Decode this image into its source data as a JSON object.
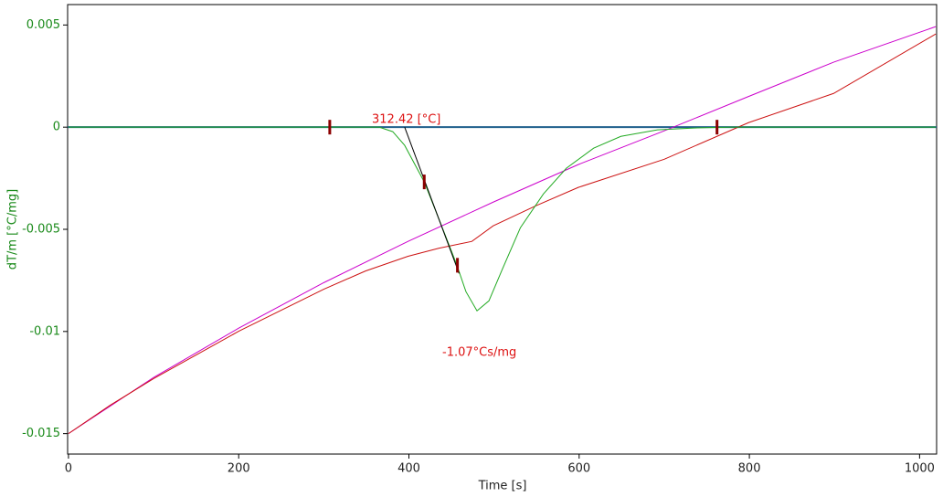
{
  "chart_data": {
    "type": "line",
    "x_label": "Time [s]",
    "y_label": "dT/m  [°C/mg]",
    "xlim": [
      -1,
      1020
    ],
    "ylim": [
      -0.016,
      0.006
    ],
    "xticks": [
      0,
      200,
      400,
      600,
      800,
      1000
    ],
    "yticks": [
      0.005,
      0,
      -0.005,
      -0.01,
      -0.015
    ],
    "reference_line": {
      "y": 0,
      "color": "#1f5f8b"
    },
    "series": [
      {
        "color": "#cc00cc",
        "x": [
          0,
          100,
          200,
          300,
          399,
          499,
          599,
          700,
          799,
          899,
          1019
        ],
        "values": [
          -0.015,
          -0.01225,
          -0.00984,
          -0.00761,
          -0.00559,
          -0.00367,
          -0.00183,
          -0.00018,
          0.0015,
          0.00318,
          0.00492
        ]
      },
      {
        "color": "#cc1111",
        "x": [
          0,
          49,
          100,
          200,
          300,
          349,
          399,
          435,
          474,
          499,
          549,
          599,
          700,
          799,
          899,
          1019
        ],
        "values": [
          -0.015,
          -0.01361,
          -0.01231,
          -0.00999,
          -0.00793,
          -0.00704,
          -0.00632,
          -0.00593,
          -0.00559,
          -0.00483,
          -0.00385,
          -0.00295,
          -0.00157,
          0.00022,
          0.00165,
          0.00456
        ]
      },
      {
        "color": "#22aa22",
        "x": [
          0,
          365,
          381,
          395,
          418,
          435,
          456,
          467,
          480,
          494,
          510,
          531,
          558,
          585,
          617,
          649,
          692,
          735,
          778,
          1019
        ],
        "values": [
          0,
          0,
          -0.00022,
          -0.00089,
          -0.00268,
          -0.00447,
          -0.00671,
          -0.00805,
          -0.00899,
          -0.0085,
          -0.00693,
          -0.00492,
          -0.00327,
          -0.00201,
          -0.00103,
          -0.00045,
          -0.00013,
          -4e-05,
          0,
          0
        ]
      }
    ],
    "tangent": {
      "x": [
        395,
        459
      ],
      "values": [
        0,
        -0.00716
      ],
      "color": "#000000"
    },
    "markers": {
      "x": [
        307,
        418,
        457,
        762
      ],
      "values": [
        0,
        -0.00268,
        -0.00676,
        0
      ],
      "color": "#8b0000"
    },
    "annotations": [
      "312.42 [°C]",
      "-1.07°Cs/mg"
    ]
  }
}
